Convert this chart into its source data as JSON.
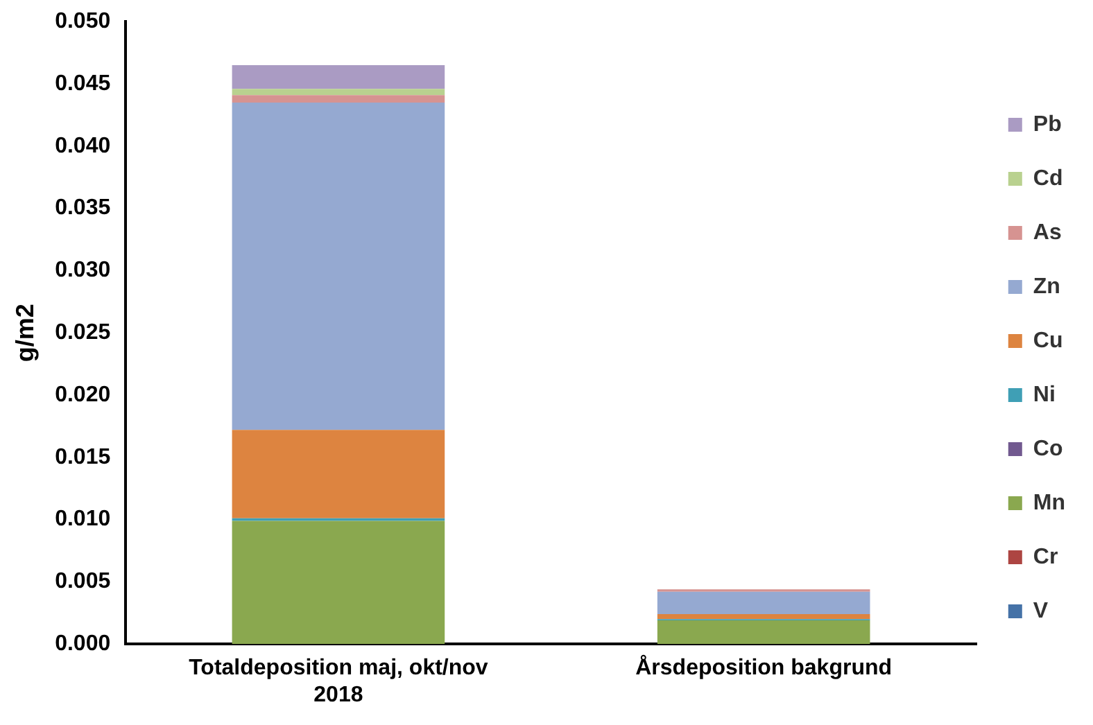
{
  "chart_data": {
    "type": "bar",
    "stacked": true,
    "ylabel": "g/m2",
    "categories": [
      "Totaldeposition maj, okt/nov 2018",
      "Årsdeposition bakgrund"
    ],
    "series": [
      {
        "name": "V",
        "color": "#4572a7",
        "values": [
          0,
          0
        ]
      },
      {
        "name": "Cr",
        "color": "#ad4542",
        "values": [
          0,
          0
        ]
      },
      {
        "name": "Mn",
        "color": "#8aa84f",
        "values": [
          0.0099,
          0.0019
        ]
      },
      {
        "name": "Co",
        "color": "#71598f",
        "values": [
          0,
          0
        ]
      },
      {
        "name": "Ni",
        "color": "#3f9fb5",
        "values": [
          0.0002,
          0.0001
        ]
      },
      {
        "name": "Cu",
        "color": "#dd8440",
        "values": [
          0.0071,
          0.0004
        ]
      },
      {
        "name": "Zn",
        "color": "#95a9d1",
        "values": [
          0.0263,
          0.0018
        ]
      },
      {
        "name": "As",
        "color": "#d69391",
        "values": [
          0.0006,
          0.0002
        ]
      },
      {
        "name": "Cd",
        "color": "#b9d18f",
        "values": [
          0.0005,
          0
        ]
      },
      {
        "name": "Pb",
        "color": "#aa9bc3",
        "values": [
          0.0019,
          0
        ]
      }
    ],
    "ylim": [
      0,
      0.05
    ],
    "yticks": [
      {
        "value": 0,
        "label": "0.000"
      },
      {
        "value": 0.005,
        "label": "0.005"
      },
      {
        "value": 0.01,
        "label": "0.010"
      },
      {
        "value": 0.015,
        "label": "0.015"
      },
      {
        "value": 0.02,
        "label": "0.020"
      },
      {
        "value": 0.025,
        "label": "0.025"
      },
      {
        "value": 0.03,
        "label": "0.030"
      },
      {
        "value": 0.035,
        "label": "0.035"
      },
      {
        "value": 0.04,
        "label": "0.040"
      },
      {
        "value": 0.045,
        "label": "0.045"
      },
      {
        "value": 0.05,
        "label": "0.050"
      }
    ],
    "grid": false,
    "legend": "right"
  }
}
